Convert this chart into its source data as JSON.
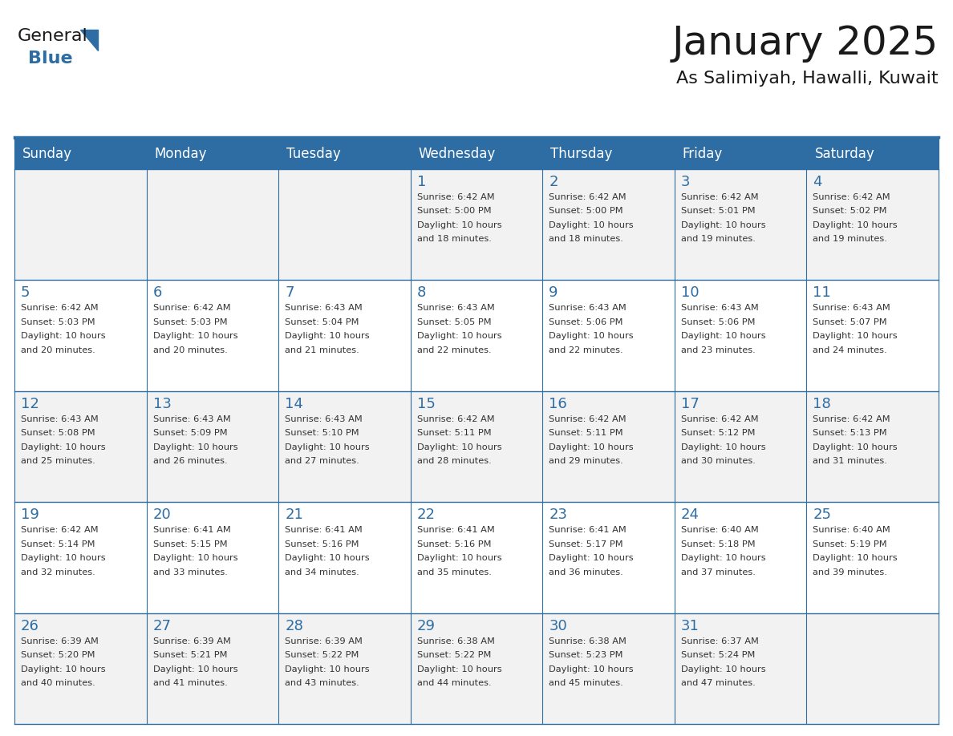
{
  "title": "January 2025",
  "subtitle": "As Salimiyah, Hawalli, Kuwait",
  "days_of_week": [
    "Sunday",
    "Monday",
    "Tuesday",
    "Wednesday",
    "Thursday",
    "Friday",
    "Saturday"
  ],
  "header_bg": "#2E6DA4",
  "header_text": "#FFFFFF",
  "odd_row_bg": "#F2F2F2",
  "even_row_bg": "#FFFFFF",
  "line_color": "#2E6DA4",
  "title_color": "#1a1a1a",
  "subtitle_color": "#1a1a1a",
  "cell_text_color": "#333333",
  "day_number_color": "#2E6DA4",
  "calendar_data": [
    [
      {
        "day": "",
        "info": ""
      },
      {
        "day": "",
        "info": ""
      },
      {
        "day": "",
        "info": ""
      },
      {
        "day": "1",
        "info": "Sunrise: 6:42 AM\nSunset: 5:00 PM\nDaylight: 10 hours\nand 18 minutes."
      },
      {
        "day": "2",
        "info": "Sunrise: 6:42 AM\nSunset: 5:00 PM\nDaylight: 10 hours\nand 18 minutes."
      },
      {
        "day": "3",
        "info": "Sunrise: 6:42 AM\nSunset: 5:01 PM\nDaylight: 10 hours\nand 19 minutes."
      },
      {
        "day": "4",
        "info": "Sunrise: 6:42 AM\nSunset: 5:02 PM\nDaylight: 10 hours\nand 19 minutes."
      }
    ],
    [
      {
        "day": "5",
        "info": "Sunrise: 6:42 AM\nSunset: 5:03 PM\nDaylight: 10 hours\nand 20 minutes."
      },
      {
        "day": "6",
        "info": "Sunrise: 6:42 AM\nSunset: 5:03 PM\nDaylight: 10 hours\nand 20 minutes."
      },
      {
        "day": "7",
        "info": "Sunrise: 6:43 AM\nSunset: 5:04 PM\nDaylight: 10 hours\nand 21 minutes."
      },
      {
        "day": "8",
        "info": "Sunrise: 6:43 AM\nSunset: 5:05 PM\nDaylight: 10 hours\nand 22 minutes."
      },
      {
        "day": "9",
        "info": "Sunrise: 6:43 AM\nSunset: 5:06 PM\nDaylight: 10 hours\nand 22 minutes."
      },
      {
        "day": "10",
        "info": "Sunrise: 6:43 AM\nSunset: 5:06 PM\nDaylight: 10 hours\nand 23 minutes."
      },
      {
        "day": "11",
        "info": "Sunrise: 6:43 AM\nSunset: 5:07 PM\nDaylight: 10 hours\nand 24 minutes."
      }
    ],
    [
      {
        "day": "12",
        "info": "Sunrise: 6:43 AM\nSunset: 5:08 PM\nDaylight: 10 hours\nand 25 minutes."
      },
      {
        "day": "13",
        "info": "Sunrise: 6:43 AM\nSunset: 5:09 PM\nDaylight: 10 hours\nand 26 minutes."
      },
      {
        "day": "14",
        "info": "Sunrise: 6:43 AM\nSunset: 5:10 PM\nDaylight: 10 hours\nand 27 minutes."
      },
      {
        "day": "15",
        "info": "Sunrise: 6:42 AM\nSunset: 5:11 PM\nDaylight: 10 hours\nand 28 minutes."
      },
      {
        "day": "16",
        "info": "Sunrise: 6:42 AM\nSunset: 5:11 PM\nDaylight: 10 hours\nand 29 minutes."
      },
      {
        "day": "17",
        "info": "Sunrise: 6:42 AM\nSunset: 5:12 PM\nDaylight: 10 hours\nand 30 minutes."
      },
      {
        "day": "18",
        "info": "Sunrise: 6:42 AM\nSunset: 5:13 PM\nDaylight: 10 hours\nand 31 minutes."
      }
    ],
    [
      {
        "day": "19",
        "info": "Sunrise: 6:42 AM\nSunset: 5:14 PM\nDaylight: 10 hours\nand 32 minutes."
      },
      {
        "day": "20",
        "info": "Sunrise: 6:41 AM\nSunset: 5:15 PM\nDaylight: 10 hours\nand 33 minutes."
      },
      {
        "day": "21",
        "info": "Sunrise: 6:41 AM\nSunset: 5:16 PM\nDaylight: 10 hours\nand 34 minutes."
      },
      {
        "day": "22",
        "info": "Sunrise: 6:41 AM\nSunset: 5:16 PM\nDaylight: 10 hours\nand 35 minutes."
      },
      {
        "day": "23",
        "info": "Sunrise: 6:41 AM\nSunset: 5:17 PM\nDaylight: 10 hours\nand 36 minutes."
      },
      {
        "day": "24",
        "info": "Sunrise: 6:40 AM\nSunset: 5:18 PM\nDaylight: 10 hours\nand 37 minutes."
      },
      {
        "day": "25",
        "info": "Sunrise: 6:40 AM\nSunset: 5:19 PM\nDaylight: 10 hours\nand 39 minutes."
      }
    ],
    [
      {
        "day": "26",
        "info": "Sunrise: 6:39 AM\nSunset: 5:20 PM\nDaylight: 10 hours\nand 40 minutes."
      },
      {
        "day": "27",
        "info": "Sunrise: 6:39 AM\nSunset: 5:21 PM\nDaylight: 10 hours\nand 41 minutes."
      },
      {
        "day": "28",
        "info": "Sunrise: 6:39 AM\nSunset: 5:22 PM\nDaylight: 10 hours\nand 43 minutes."
      },
      {
        "day": "29",
        "info": "Sunrise: 6:38 AM\nSunset: 5:22 PM\nDaylight: 10 hours\nand 44 minutes."
      },
      {
        "day": "30",
        "info": "Sunrise: 6:38 AM\nSunset: 5:23 PM\nDaylight: 10 hours\nand 45 minutes."
      },
      {
        "day": "31",
        "info": "Sunrise: 6:37 AM\nSunset: 5:24 PM\nDaylight: 10 hours\nand 47 minutes."
      },
      {
        "day": "",
        "info": ""
      }
    ]
  ]
}
